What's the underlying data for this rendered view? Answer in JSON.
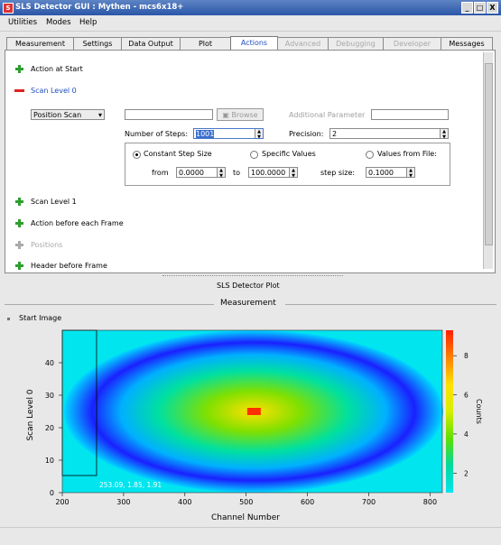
{
  "window": {
    "title": "SLS Detector GUI : Mythen - mcs6x18+",
    "app_icon": "sls-logo-icon",
    "buttons": [
      "_",
      "□",
      "X"
    ]
  },
  "menubar": [
    "Utilities",
    "Modes",
    "Help"
  ],
  "tabs": [
    {
      "label": "Measurement",
      "state": "normal"
    },
    {
      "label": "Settings",
      "state": "normal"
    },
    {
      "label": "Data Output",
      "state": "normal"
    },
    {
      "label": "Plot",
      "state": "normal"
    },
    {
      "label": "Actions",
      "state": "active"
    },
    {
      "label": "Advanced",
      "state": "disabled"
    },
    {
      "label": "Debugging",
      "state": "disabled"
    },
    {
      "label": "Developer",
      "state": "disabled"
    },
    {
      "label": "Messages",
      "state": "normal"
    }
  ],
  "actions": {
    "action_at_start": "Action at Start",
    "scan_level_0": "Scan Level 0",
    "scan_type": "Position Scan",
    "browse": "Browse",
    "additional_parameter": "Additional Parameter",
    "number_of_steps_label": "Number of Steps:",
    "number_of_steps": "1001",
    "precision_label": "Precision:",
    "precision": "2",
    "constant_step_size": "Constant Step Size",
    "specific_values": "Specific Values",
    "values_from_file": "Values from File:",
    "from_label": "from",
    "from_value": "0.0000",
    "to_label": "to",
    "to_value": "100.0000",
    "step_size_label": "step size:",
    "step_size": "0.1000",
    "scan_level_1": "Scan Level 1",
    "action_before_each_frame": "Action before each Frame",
    "positions": "Positions",
    "header_before_frame": "Header before Frame"
  },
  "plot": {
    "panel_title": "SLS Detector Plot",
    "measurement_title": "Measurement",
    "start_image": "Start Image",
    "readout": "253.09, 1.85, 1.91"
  },
  "chart_data": {
    "type": "heatmap",
    "xlabel": "Channel Number",
    "ylabel": "Scan Level 0",
    "zlabel": "Counts",
    "xlim": [
      200,
      820
    ],
    "ylim": [
      0,
      50
    ],
    "zlim": [
      1,
      9.3
    ],
    "x_ticks": [
      200,
      300,
      400,
      500,
      600,
      700,
      800
    ],
    "y_ticks": [
      0,
      10,
      20,
      30,
      40
    ],
    "z_ticks": [
      2,
      4,
      6,
      8
    ],
    "center": [
      512,
      25
    ],
    "colors": [
      "#00e5ee",
      "#00b0ff",
      "#0010ff",
      "#1a20ff",
      "#00e0a0",
      "#ffe000",
      "#ff2000"
    ]
  }
}
